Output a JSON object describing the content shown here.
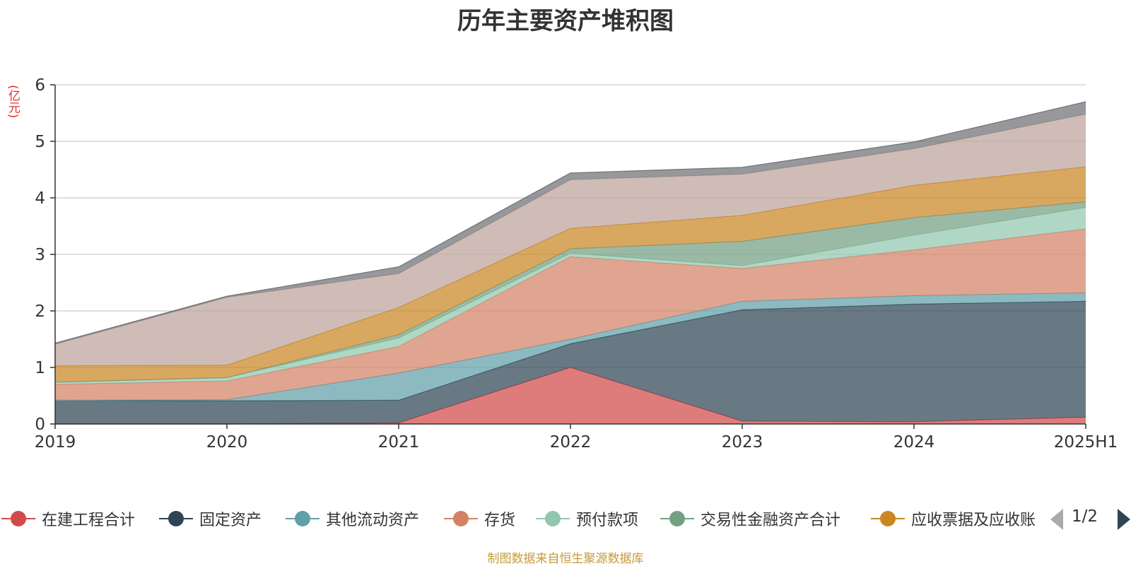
{
  "title": "历年主要资产堆积图",
  "unit_label": "(亿元)",
  "source_text": "制图数据来自恒生聚源数据库",
  "pager": {
    "text": "1/2"
  },
  "chart_data": {
    "type": "area",
    "stacked": true,
    "title": "历年主要资产堆积图",
    "ylabel": "(亿元)",
    "x": [
      "2019",
      "2020",
      "2021",
      "2022",
      "2023",
      "2024",
      "2025H1"
    ],
    "ylim": [
      0,
      6
    ],
    "yticks": [
      0,
      1,
      2,
      3,
      4,
      5,
      6
    ],
    "grid": true,
    "legend_position": "bottom",
    "series": [
      {
        "name": "在建工程合计",
        "color": "#d14a4a",
        "values": [
          0,
          0,
          0.02,
          1.0,
          0.05,
          0.04,
          0.12
        ]
      },
      {
        "name": "固定资产",
        "color": "#2f4554",
        "values": [
          0.42,
          0.41,
          0.4,
          0.42,
          1.97,
          2.08,
          2.05
        ]
      },
      {
        "name": "其他流动资产",
        "color": "#61a0a8",
        "values": [
          0,
          0.02,
          0.48,
          0.08,
          0.15,
          0.15,
          0.15
        ]
      },
      {
        "name": "存货",
        "color": "#d48265",
        "values": [
          0.28,
          0.33,
          0.47,
          1.46,
          0.58,
          0.81,
          1.13
        ]
      },
      {
        "name": "预付款项",
        "color": "#91c7ae",
        "values": [
          0.04,
          0.06,
          0.15,
          0.06,
          0.05,
          0.26,
          0.38
        ]
      },
      {
        "name": "交易性金融资产合计",
        "color": "#749f83",
        "values": [
          0,
          0,
          0.06,
          0.08,
          0.43,
          0.31,
          0.1
        ]
      },
      {
        "name": "应收票据及应收账",
        "color": "#ca8622",
        "values": [
          0.29,
          0.22,
          0.48,
          0.36,
          0.46,
          0.57,
          0.62
        ]
      },
      {
        "name": "",
        "color": "#bda29a",
        "values": [
          0.38,
          1.2,
          0.6,
          0.86,
          0.73,
          0.65,
          0.93
        ]
      },
      {
        "name": "",
        "color": "#6e7074",
        "values": [
          0.02,
          0.02,
          0.12,
          0.12,
          0.12,
          0.12,
          0.22
        ]
      }
    ]
  }
}
